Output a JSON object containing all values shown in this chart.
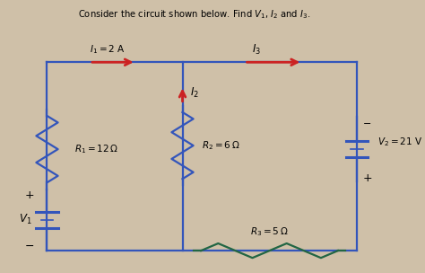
{
  "title": "Consider the circuit shown below. Find $V_1$, $I_2$ and $I_3$.",
  "bg_color": "#cfc0a8",
  "wire_color": "#3355bb",
  "resistor_color": "#3355bb",
  "current_arrow_color": "#cc2222",
  "components": {
    "I1_label": "$I_1 = 2$ A",
    "R1_label": "$R_1 = 12\\,\\Omega$",
    "R2_label": "$R_2 = 6\\,\\Omega$",
    "R3_label": "$R_3 = 5\\,\\Omega$",
    "V1_label": "$V_1$",
    "V2_label": "$V_2 = 21$ V",
    "I2_label": "$I_2$",
    "I3_label": "$I_3$"
  }
}
